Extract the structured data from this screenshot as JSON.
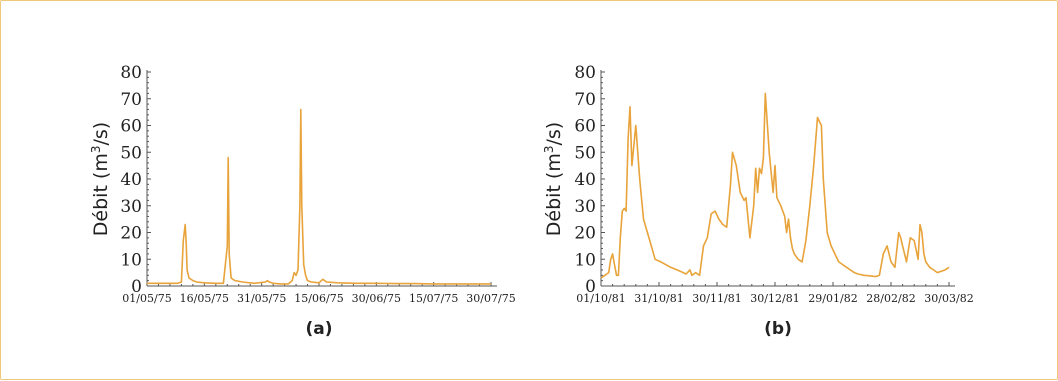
{
  "colors": {
    "line": "#e8a33a",
    "border": "#f0c87a"
  },
  "chart_data": [
    {
      "type": "line",
      "caption": "(a)",
      "ylabel_main": "Débit (m",
      "ylabel_sup": "3",
      "ylabel_end": "/s)",
      "ylim": [
        0,
        80
      ],
      "yticks": [
        0,
        10,
        20,
        30,
        40,
        50,
        60,
        70,
        80
      ],
      "xlim": [
        "1975-05-01",
        "1975-07-30"
      ],
      "xtick_labels": [
        "01/05/75",
        "16/05/75",
        "31/05/75",
        "15/06/75",
        "30/06/75",
        "15/07/75",
        "30/07/75"
      ],
      "xtick_dates": [
        "1975-05-01",
        "1975-05-16",
        "1975-05-31",
        "1975-06-15",
        "1975-06-30",
        "1975-07-15",
        "1975-07-30"
      ],
      "x": [
        "1975-05-01",
        "1975-05-09",
        "1975-05-10",
        "1975-05-10 12:00",
        "1975-05-11",
        "1975-05-11 06:00",
        "1975-05-11 12:00",
        "1975-05-12",
        "1975-05-13",
        "1975-05-14",
        "1975-05-16",
        "1975-05-19",
        "1975-05-21",
        "1975-05-22",
        "1975-05-22 06:00",
        "1975-05-22 12:00",
        "1975-05-23",
        "1975-05-24",
        "1975-05-26",
        "1975-05-29",
        "1975-06-01",
        "1975-06-01 12:00",
        "1975-06-02",
        "1975-06-03",
        "1975-06-05",
        "1975-06-07",
        "1975-06-08",
        "1975-06-08 12:00",
        "1975-06-09",
        "1975-06-09 12:00",
        "1975-06-10",
        "1975-06-10 06:00",
        "1975-06-10 12:00",
        "1975-06-11",
        "1975-06-11 12:00",
        "1975-06-12",
        "1975-06-13",
        "1975-06-15",
        "1975-06-16",
        "1975-06-17",
        "1975-06-20",
        "1975-06-25",
        "1975-06-30",
        "1975-07-05",
        "1975-07-10",
        "1975-07-15",
        "1975-07-20",
        "1975-07-25",
        "1975-07-30"
      ],
      "y": [
        1.0,
        1.0,
        1.5,
        17.0,
        23.0,
        16.0,
        6.0,
        3.0,
        2.0,
        1.5,
        1.2,
        1.0,
        1.0,
        15.0,
        48.0,
        12.0,
        3.0,
        2.0,
        1.5,
        1.0,
        1.5,
        2.0,
        1.5,
        1.0,
        0.8,
        0.8,
        2.0,
        5.0,
        4.0,
        6.0,
        30.0,
        66.0,
        30.0,
        8.0,
        4.0,
        2.0,
        1.5,
        1.2,
        2.5,
        1.5,
        1.2,
        1.0,
        1.0,
        0.9,
        0.9,
        0.8,
        0.8,
        0.8,
        0.8
      ]
    },
    {
      "type": "line",
      "caption": "(b)",
      "ylabel_main": "Débit (m",
      "ylabel_sup": "3",
      "ylabel_end": "/s)",
      "ylim": [
        0,
        80
      ],
      "yticks": [
        0,
        10,
        20,
        30,
        40,
        50,
        60,
        70,
        80
      ],
      "xlim": [
        "1981-10-01",
        "1982-03-30"
      ],
      "xtick_labels": [
        "01/10/81",
        "31/10/81",
        "30/11/81",
        "30/12/81",
        "29/01/82",
        "28/02/82",
        "30/03/82"
      ],
      "xtick_dates": [
        "1981-10-01",
        "1981-10-31",
        "1981-11-30",
        "1981-12-30",
        "1982-01-29",
        "1982-02-28",
        "1982-03-30"
      ],
      "x": [
        "1981-10-01",
        "1981-10-03",
        "1981-10-05",
        "1981-10-06",
        "1981-10-07",
        "1981-10-08",
        "1981-10-09",
        "1981-10-10",
        "1981-10-11",
        "1981-10-12",
        "1981-10-13",
        "1981-10-14",
        "1981-10-15",
        "1981-10-16",
        "1981-10-17",
        "1981-10-19",
        "1981-10-21",
        "1981-10-23",
        "1981-10-25",
        "1981-10-27",
        "1981-10-29",
        "1981-11-01",
        "1981-11-06",
        "1981-11-11",
        "1981-11-14",
        "1981-11-16",
        "1981-11-17",
        "1981-11-19",
        "1981-11-21",
        "1981-11-23",
        "1981-11-25",
        "1981-11-27",
        "1981-11-29",
        "1981-12-01",
        "1981-12-03",
        "1981-12-05",
        "1981-12-07",
        "1981-12-08",
        "1981-12-10",
        "1981-12-12",
        "1981-12-14",
        "1981-12-15",
        "1981-12-17",
        "1981-12-19",
        "1981-12-20",
        "1981-12-21",
        "1981-12-22",
        "1981-12-23",
        "1981-12-24",
        "1981-12-25",
        "1981-12-27",
        "1981-12-29",
        "1981-12-30",
        "1981-12-31",
        "1982-01-02",
        "1982-01-04",
        "1982-01-05",
        "1982-01-06",
        "1982-01-07",
        "1982-01-08",
        "1982-01-09",
        "1982-01-11",
        "1982-01-13",
        "1982-01-15",
        "1982-01-17",
        "1982-01-19",
        "1982-01-21",
        "1982-01-23",
        "1982-01-24",
        "1982-01-26",
        "1982-01-28",
        "1982-01-30",
        "1982-02-01",
        "1982-02-03",
        "1982-02-05",
        "1982-02-07",
        "1982-02-09",
        "1982-02-11",
        "1982-02-14",
        "1982-02-17",
        "1982-02-20",
        "1982-02-22",
        "1982-02-24",
        "1982-02-26",
        "1982-02-28",
        "1982-03-02",
        "1982-03-04",
        "1982-03-05",
        "1982-03-06",
        "1982-03-08",
        "1982-03-10",
        "1982-03-12",
        "1982-03-14",
        "1982-03-15",
        "1982-03-16",
        "1982-03-17",
        "1982-03-18",
        "1982-03-20",
        "1982-03-22",
        "1982-03-24",
        "1982-03-26",
        "1982-03-28",
        "1982-03-30"
      ],
      "y": [
        3,
        4,
        5,
        10,
        12,
        8,
        4,
        4,
        18,
        28,
        29,
        28,
        55,
        67,
        45,
        60,
        40,
        25,
        20,
        15,
        10,
        9,
        7,
        5.5,
        4.5,
        6,
        4,
        5,
        4,
        15,
        18,
        27,
        28,
        25,
        23,
        22,
        38,
        50,
        45,
        35,
        32,
        33,
        18,
        30,
        44,
        35,
        44,
        42,
        48,
        72,
        50,
        35,
        45,
        33,
        30,
        26,
        20,
        25,
        18,
        14,
        12,
        10,
        9,
        17,
        30,
        45,
        63,
        60,
        40,
        20,
        15,
        12,
        9,
        8,
        7,
        6,
        5,
        4.5,
        4,
        3.8,
        3.5,
        4,
        12,
        15,
        9,
        7,
        20,
        18,
        15,
        9,
        18,
        17,
        10,
        23,
        20,
        12,
        9,
        7,
        6,
        5,
        5.5,
        6,
        7
      ]
    }
  ]
}
